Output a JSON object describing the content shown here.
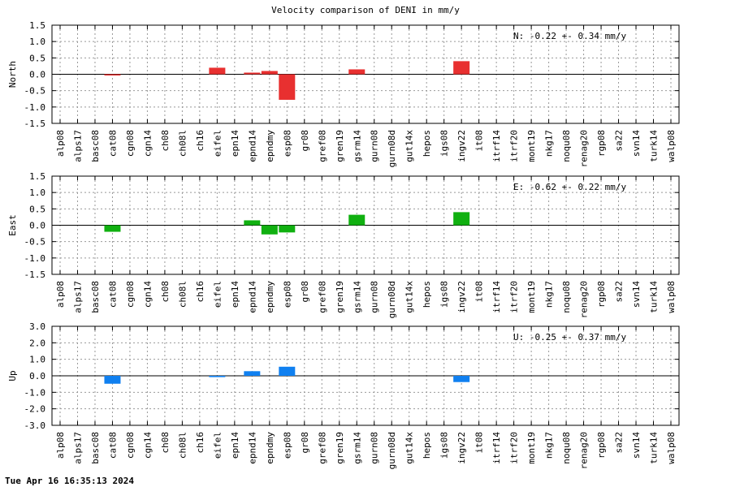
{
  "chart_title": "Velocity comparison of DENI in mm/y",
  "timestamp": "Tue Apr 16 16:35:13 2024",
  "colors": {
    "north": "#e83030",
    "east": "#10b010",
    "up": "#1080f0",
    "grid": "#999999",
    "axis": "#000000"
  },
  "chart_data": [
    {
      "type": "bar",
      "ylabel": "North",
      "ylim": [
        -1.5,
        1.5
      ],
      "yticks": [
        "-1.5",
        "-1.0",
        "-0.5",
        "0.0",
        "0.5",
        "1.0",
        "1.5"
      ],
      "annotation": "N:  -0.22 +-  0.34 mm/y",
      "grid": true,
      "categories": [
        "alp08",
        "alps17",
        "basc08",
        "cat08",
        "cgn08",
        "cgn14",
        "ch08",
        "ch08l",
        "ch16",
        "eifel",
        "epn14",
        "epnd14",
        "epndmy",
        "esp08",
        "gr08",
        "gref08",
        "gren19",
        "gsrm14",
        "gurn08",
        "gurn08d",
        "gut14x",
        "hepos",
        "igs08",
        "ingv22",
        "it08",
        "itrf14",
        "itrf20",
        "mont19",
        "nkg17",
        "noqu08",
        "renag20",
        "rgp08",
        "sa22",
        "svn14",
        "turk14",
        "walp08"
      ],
      "values": [
        0,
        0,
        0,
        -0.03,
        0,
        0,
        0,
        0,
        0,
        0.2,
        0,
        0.05,
        0.1,
        -0.78,
        0,
        0,
        0,
        0.15,
        0,
        0,
        0,
        0,
        0,
        0.4,
        0,
        0,
        0,
        0,
        0,
        0,
        0,
        0,
        0,
        0,
        0,
        0
      ]
    },
    {
      "type": "bar",
      "ylabel": "East",
      "ylim": [
        -1.5,
        1.5
      ],
      "yticks": [
        "-1.5",
        "-1.0",
        "-0.5",
        "0.0",
        "0.5",
        "1.0",
        "1.5"
      ],
      "annotation": "E:  -0.62 +-  0.22 mm/y",
      "grid": true,
      "categories": [
        "alp08",
        "alps17",
        "basc08",
        "cat08",
        "cgn08",
        "cgn14",
        "ch08",
        "ch08l",
        "ch16",
        "eifel",
        "epn14",
        "epnd14",
        "epndmy",
        "esp08",
        "gr08",
        "gref08",
        "gren19",
        "gsrm14",
        "gurn08",
        "gurn08d",
        "gut14x",
        "hepos",
        "igs08",
        "ingv22",
        "it08",
        "itrf14",
        "itrf20",
        "mont19",
        "nkg17",
        "noqu08",
        "renag20",
        "rgp08",
        "sa22",
        "svn14",
        "turk14",
        "walp08"
      ],
      "values": [
        0,
        0,
        0,
        -0.2,
        0,
        0,
        0,
        0,
        0,
        0,
        0,
        0.15,
        -0.28,
        -0.22,
        0,
        0,
        0,
        0.32,
        0,
        0,
        0,
        0,
        0,
        0.4,
        0,
        0,
        0,
        0,
        0,
        0,
        0,
        0,
        0,
        0,
        0,
        0
      ]
    },
    {
      "type": "bar",
      "ylabel": "Up",
      "ylim": [
        -3.0,
        3.0
      ],
      "yticks": [
        "-3.0",
        "-2.0",
        "-1.0",
        "0.0",
        "1.0",
        "2.0",
        "3.0"
      ],
      "annotation": "U:  -0.25 +-  0.37 mm/y",
      "grid": true,
      "categories": [
        "alp08",
        "alps17",
        "basc08",
        "cat08",
        "cgn08",
        "cgn14",
        "ch08",
        "ch08l",
        "ch16",
        "eifel",
        "epn14",
        "epnd14",
        "epndmy",
        "esp08",
        "gr08",
        "gref08",
        "gren19",
        "gsrm14",
        "gurn08",
        "gurn08d",
        "gut14x",
        "hepos",
        "igs08",
        "ingv22",
        "it08",
        "itrf14",
        "itrf20",
        "mont19",
        "nkg17",
        "noqu08",
        "renag20",
        "rgp08",
        "sa22",
        "svn14",
        "turk14",
        "walp08"
      ],
      "values": [
        0,
        0,
        0,
        -0.48,
        0,
        0,
        0,
        0,
        0,
        -0.08,
        0,
        0.28,
        0,
        0.55,
        0,
        0,
        0,
        0,
        0,
        0,
        0,
        0,
        0,
        -0.38,
        0,
        0,
        0,
        0,
        0,
        0,
        0,
        0,
        0,
        0,
        0,
        0
      ]
    }
  ]
}
